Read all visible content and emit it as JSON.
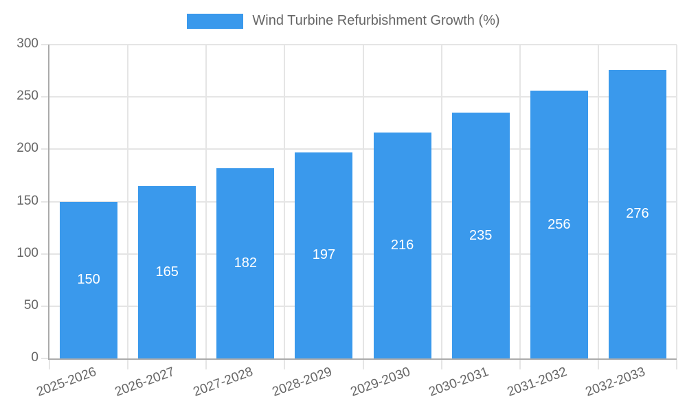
{
  "chart_data": {
    "type": "bar",
    "title": "Wind Turbine Refurbishment Growth (%)",
    "legend": {
      "label": "Wind Turbine Refurbishment Growth (%)",
      "position": "top"
    },
    "categories": [
      "2025-2026",
      "2026-2027",
      "2027-2028",
      "2028-2029",
      "2029-2030",
      "2030-2031",
      "2031-2032",
      "2032-2033"
    ],
    "series": [
      {
        "name": "Wind Turbine Refurbishment Growth (%)",
        "values": [
          150,
          165,
          182,
          197,
          216,
          235,
          256,
          276
        ]
      }
    ],
    "bar_value_labels": [
      150,
      165,
      182,
      197,
      216,
      235,
      256,
      276
    ],
    "xlabel": "",
    "ylabel": "",
    "ylim": [
      0,
      300
    ],
    "yticks": [
      0,
      50,
      100,
      150,
      200,
      250,
      300
    ],
    "grid": true,
    "colors": {
      "bar": "#3a99ec",
      "bar_label_text": "#ffffff",
      "grid": "#e5e5e5",
      "axis": "#ababab",
      "tick_label_text": "#666666",
      "legend_text": "#666666",
      "background": "#ffffff"
    }
  }
}
